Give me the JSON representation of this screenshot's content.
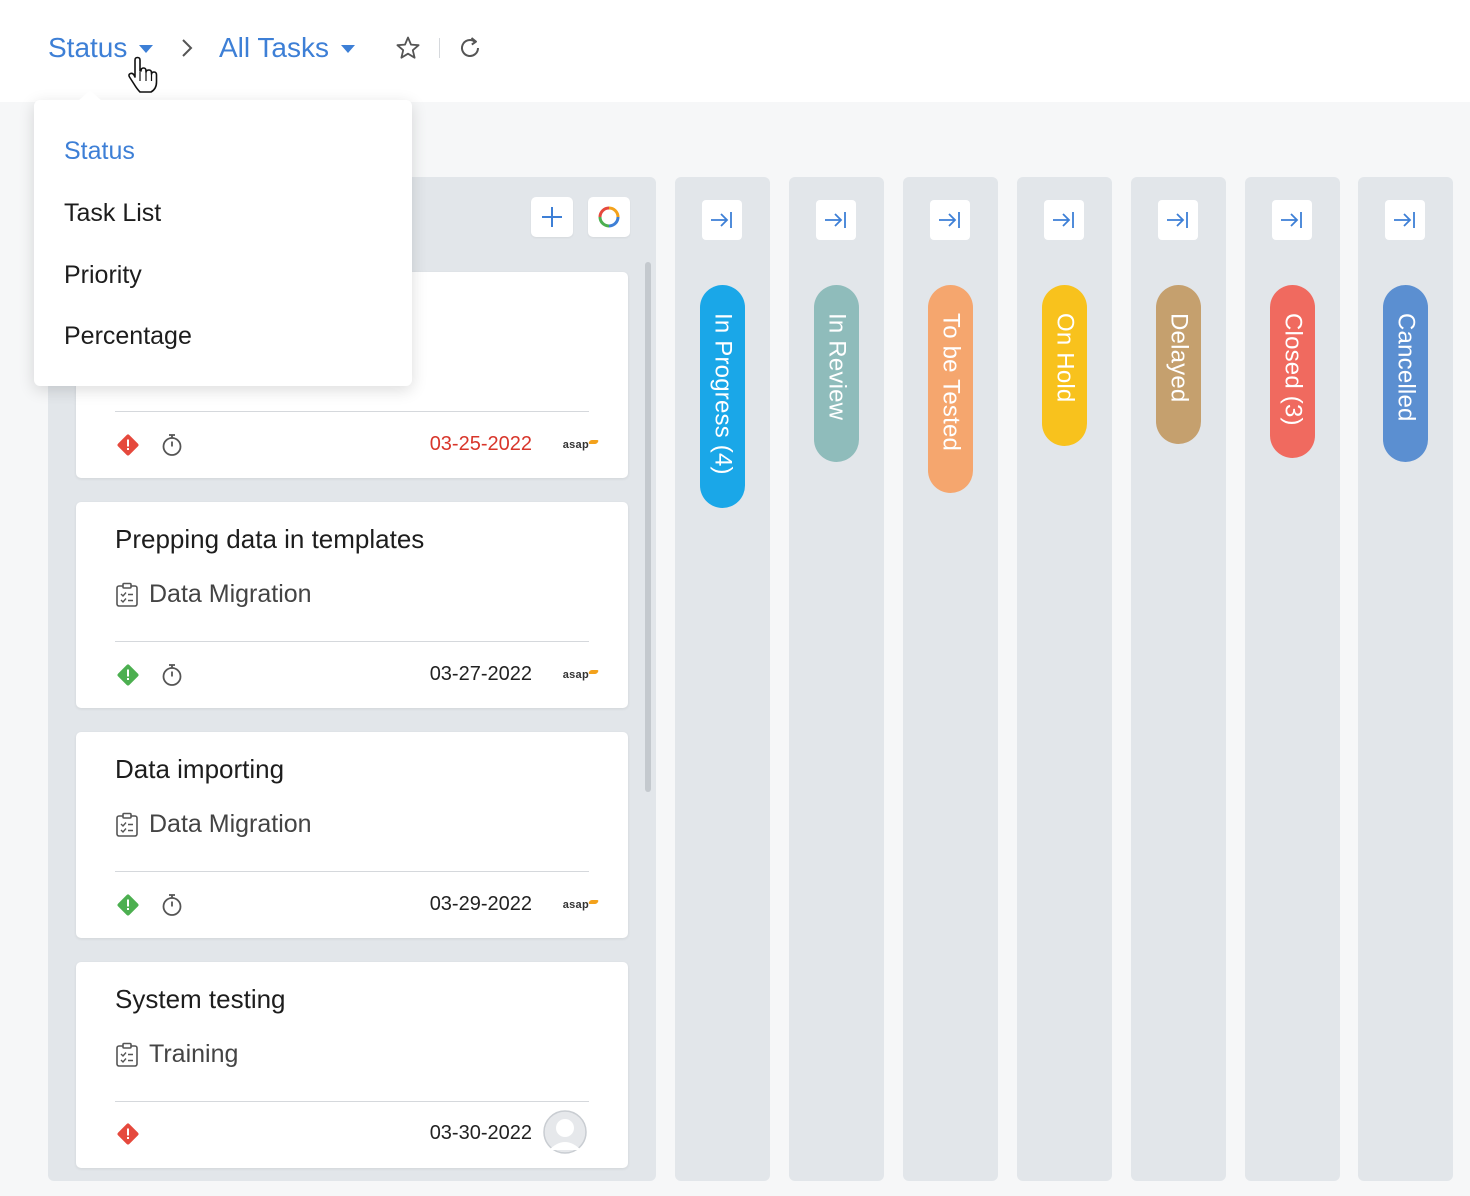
{
  "header": {
    "view_by_label": "Status",
    "filter_label": "All Tasks",
    "icons": [
      "chevron-down-icon",
      "chevron-right-icon",
      "star-icon",
      "refresh-icon"
    ]
  },
  "dropdown": {
    "items": [
      {
        "label": "Status",
        "selected": true
      },
      {
        "label": "Task List",
        "selected": false
      },
      {
        "label": "Priority",
        "selected": false
      },
      {
        "label": "Percentage",
        "selected": false
      }
    ]
  },
  "first_column": {
    "buttons": [
      "plus-icon",
      "progress-ring-icon"
    ],
    "partial_card": {
      "date": "03-25-2022",
      "date_overdue": true,
      "priority_color": "#e5493d",
      "owner": "asap"
    },
    "cards": [
      {
        "title": "Prepping data in templates",
        "tasklist": "Data Migration",
        "date": "03-27-2022",
        "priority_color": "#4caf50",
        "owner": "asap",
        "has_timer": true
      },
      {
        "title": "Data importing",
        "tasklist": "Data Migration",
        "date": "03-29-2022",
        "priority_color": "#4caf50",
        "owner": "asap",
        "has_timer": true
      },
      {
        "title": "System testing",
        "tasklist": "Training",
        "date": "03-30-2022",
        "priority_color": "#e5493d",
        "owner": "avatar",
        "has_timer": false
      }
    ]
  },
  "columns": [
    {
      "label": "In Progress (4)",
      "color": "#1aa7e8"
    },
    {
      "label": "In Review",
      "color": "#8fbcbb"
    },
    {
      "label": "To be Tested",
      "color": "#f5a66e"
    },
    {
      "label": "On Hold",
      "color": "#f8c21d"
    },
    {
      "label": "Delayed",
      "color": "#c5a06e"
    },
    {
      "label": "Closed (3)",
      "color": "#f06a5f"
    },
    {
      "label": "Cancelled",
      "color": "#5b8fd1"
    }
  ]
}
